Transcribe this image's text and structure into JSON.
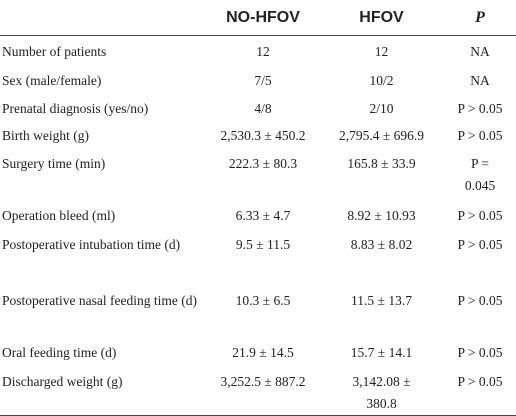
{
  "table": {
    "columns": [
      "NO-HFOV",
      "HFOV",
      "P"
    ],
    "rows": [
      [
        "Number of patients",
        "12",
        "12",
        "NA"
      ],
      [
        "Sex (male/female)",
        "7/5",
        "10/2",
        "NA"
      ],
      [
        "Prenatal diagnosis (yes/no)",
        "4/8",
        "2/10",
        "P > 0.05"
      ],
      [
        "Birth weight (g)",
        "2,530.3 ± 450.2",
        "2,795.4 ± 696.9",
        "P > 0.05"
      ],
      [
        "Surgery time (min)",
        "222.3 ± 80.3",
        "165.8 ± 33.9",
        "P = 0.045"
      ],
      [
        "Operation bleed (ml)",
        "6.33 ± 4.7",
        "8.92 ± 10.93",
        "P > 0.05"
      ],
      [
        "Postoperative intubation time (d)",
        "9.5 ± 11.5",
        "8.83 ± 8.02",
        "P > 0.05"
      ],
      [
        "Postoperative nasal feeding time (d)",
        "10.3 ± 6.5",
        "11.5 ± 13.7",
        "P > 0.05"
      ],
      [
        "Oral feeding time (d)",
        "21.9 ± 14.5",
        "15.7 ± 14.1",
        "P > 0.05"
      ],
      [
        "Discharged weight (g)",
        "3,252.5 ± 887.2",
        "3,142.08 ± 380.8",
        "P > 0.05"
      ]
    ]
  }
}
